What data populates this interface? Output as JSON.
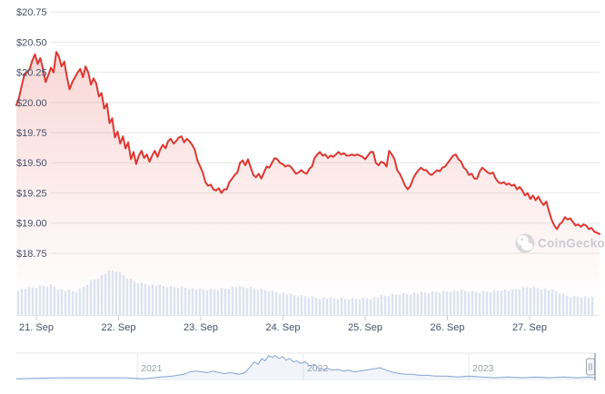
{
  "watermark": {
    "text": "CoinGecko",
    "logo": "gecko-icon"
  },
  "colors": {
    "line": "#dc3832",
    "area_top": "rgba(220,56,48,0.20)",
    "area_bottom": "rgba(220,56,48,0)",
    "grid": "#e7e7e7",
    "axis_label": "#46506a",
    "volume_bar": "#dce2f0",
    "tick": "#c7cedd",
    "nav_line": "#88a3d4",
    "nav_fill": "rgba(136,163,212,0.12)",
    "nav_border": "#e7e7e7",
    "nav_handle_fill": "#f5f6f8",
    "nav_handle_border": "#9aa3b0",
    "nav_label": "#9aa0a6",
    "watermark_text": "#c9cad1",
    "watermark_logo": "#d8d8d8"
  },
  "chart_data": {
    "type": "line",
    "currency": "USD",
    "y_axis": {
      "tick_labels": [
        "$20.75",
        "$20.50",
        "$20.25",
        "$20.00",
        "$19.75",
        "$19.50",
        "$19.25",
        "$19.00",
        "$18.75"
      ],
      "tick_values": [
        20.75,
        20.5,
        20.25,
        20.0,
        19.75,
        19.5,
        19.25,
        19.0,
        18.75
      ]
    },
    "x_axis": {
      "tick_labels": [
        "21. Sep",
        "22. Sep",
        "23. Sep",
        "24. Sep",
        "25. Sep",
        "26. Sep",
        "27. Sep"
      ]
    },
    "ylim": [
      18.6,
      20.85
    ],
    "series": [
      {
        "name": "price_usd",
        "color": "#dc3832",
        "values": [
          19.98,
          20.04,
          20.14,
          20.23,
          20.25,
          20.28,
          20.35,
          20.4,
          20.32,
          20.37,
          20.28,
          20.17,
          20.23,
          20.29,
          20.25,
          20.42,
          20.38,
          20.3,
          20.34,
          20.21,
          20.11,
          20.17,
          20.21,
          20.25,
          20.28,
          20.21,
          20.3,
          20.25,
          20.15,
          20.2,
          20.16,
          20.05,
          20.08,
          19.95,
          19.99,
          19.83,
          19.87,
          19.71,
          19.76,
          19.66,
          19.72,
          19.62,
          19.67,
          19.53,
          19.59,
          19.49,
          19.56,
          19.6,
          19.54,
          19.57,
          19.51,
          19.56,
          19.6,
          19.55,
          19.61,
          19.65,
          19.62,
          19.68,
          19.7,
          19.66,
          19.68,
          19.71,
          19.72,
          19.67,
          19.7,
          19.68,
          19.65,
          19.61,
          19.52,
          19.47,
          19.42,
          19.34,
          19.31,
          19.32,
          19.28,
          19.27,
          19.29,
          19.25,
          19.28,
          19.28,
          19.34,
          19.37,
          19.4,
          19.42,
          19.5,
          19.52,
          19.48,
          19.53,
          19.46,
          19.4,
          19.38,
          19.41,
          19.37,
          19.42,
          19.47,
          19.46,
          19.5,
          19.54,
          19.53,
          19.5,
          19.49,
          19.47,
          19.48,
          19.47,
          19.44,
          19.41,
          19.42,
          19.44,
          19.42,
          19.41,
          19.45,
          19.47,
          19.54,
          19.57,
          19.59,
          19.56,
          19.57,
          19.54,
          19.56,
          19.55,
          19.57,
          19.59,
          19.57,
          19.58,
          19.56,
          19.56,
          19.57,
          19.56,
          19.57,
          19.56,
          19.55,
          19.53,
          19.56,
          19.59,
          19.59,
          19.5,
          19.48,
          19.51,
          19.5,
          19.47,
          19.6,
          19.57,
          19.53,
          19.44,
          19.41,
          19.36,
          19.31,
          19.28,
          19.31,
          19.37,
          19.41,
          19.44,
          19.46,
          19.44,
          19.44,
          19.41,
          19.4,
          19.42,
          19.44,
          19.43,
          19.46,
          19.47,
          19.5,
          19.53,
          19.56,
          19.57,
          19.53,
          19.51,
          19.46,
          19.44,
          19.4,
          19.41,
          19.37,
          19.37,
          19.43,
          19.46,
          19.44,
          19.42,
          19.41,
          19.42,
          19.37,
          19.34,
          19.33,
          19.34,
          19.32,
          19.33,
          19.31,
          19.32,
          19.28,
          19.3,
          19.27,
          19.23,
          19.25,
          19.2,
          19.23,
          19.19,
          19.22,
          19.18,
          19.15,
          19.18,
          19.1,
          19.03,
          18.98,
          18.95,
          18.99,
          19.01,
          19.05,
          19.03,
          19.04,
          19.01,
          18.98,
          18.99,
          18.97,
          18.99,
          18.98,
          18.95,
          18.96,
          18.93,
          18.92,
          18.91
        ]
      }
    ],
    "volume_profile": [
      [
        0.003,
        28
      ],
      [
        0.035,
        31
      ],
      [
        0.058,
        33
      ],
      [
        0.082,
        27
      ],
      [
        0.105,
        26
      ],
      [
        0.129,
        38
      ],
      [
        0.148,
        44
      ],
      [
        0.16,
        48
      ],
      [
        0.17,
        49
      ],
      [
        0.181,
        45
      ],
      [
        0.193,
        40
      ],
      [
        0.207,
        36
      ],
      [
        0.226,
        34
      ],
      [
        0.248,
        32
      ],
      [
        0.27,
        31
      ],
      [
        0.294,
        30
      ],
      [
        0.314,
        28
      ],
      [
        0.333,
        28
      ],
      [
        0.356,
        29
      ],
      [
        0.377,
        31
      ],
      [
        0.399,
        30
      ],
      [
        0.424,
        28
      ],
      [
        0.449,
        25
      ],
      [
        0.474,
        22
      ],
      [
        0.499,
        20
      ],
      [
        0.524,
        19
      ],
      [
        0.553,
        18
      ],
      [
        0.581,
        18
      ],
      [
        0.606,
        19
      ],
      [
        0.631,
        21
      ],
      [
        0.656,
        23
      ],
      [
        0.681,
        24
      ],
      [
        0.706,
        25
      ],
      [
        0.732,
        26
      ],
      [
        0.757,
        27
      ],
      [
        0.776,
        26
      ],
      [
        0.794,
        25
      ],
      [
        0.813,
        26
      ],
      [
        0.832,
        28
      ],
      [
        0.848,
        27
      ],
      [
        0.863,
        29
      ],
      [
        0.879,
        31
      ],
      [
        0.895,
        30
      ],
      [
        0.911,
        28
      ],
      [
        0.926,
        26
      ],
      [
        0.939,
        22
      ],
      [
        0.954,
        20
      ],
      [
        0.967,
        21
      ],
      [
        0.983,
        19
      ],
      [
        0.998,
        17
      ]
    ],
    "navigator": {
      "year_labels": [
        "2021",
        "2022",
        "2023"
      ],
      "year_fractions": [
        0.209,
        0.496,
        0.782
      ],
      "points": [
        [
          0,
          0.03
        ],
        [
          0.07,
          0.07
        ],
        [
          0.13,
          0.07
        ],
        [
          0.19,
          0.07
        ],
        [
          0.22,
          0.03
        ],
        [
          0.25,
          0.1
        ],
        [
          0.27,
          0.14
        ],
        [
          0.29,
          0.21
        ],
        [
          0.3,
          0.31
        ],
        [
          0.31,
          0.34
        ],
        [
          0.33,
          0.28
        ],
        [
          0.34,
          0.34
        ],
        [
          0.35,
          0.28
        ],
        [
          0.36,
          0.24
        ],
        [
          0.37,
          0.28
        ],
        [
          0.385,
          0.21
        ],
        [
          0.395,
          0.28
        ],
        [
          0.403,
          0.48
        ],
        [
          0.411,
          0.72
        ],
        [
          0.418,
          0.62
        ],
        [
          0.424,
          0.86
        ],
        [
          0.43,
          0.76
        ],
        [
          0.436,
          0.97
        ],
        [
          0.443,
          0.9
        ],
        [
          0.447,
          0.98
        ],
        [
          0.454,
          0.86
        ],
        [
          0.46,
          0.93
        ],
        [
          0.466,
          0.79
        ],
        [
          0.472,
          0.86
        ],
        [
          0.479,
          0.72
        ],
        [
          0.485,
          0.76
        ],
        [
          0.491,
          0.66
        ],
        [
          0.499,
          0.72
        ],
        [
          0.507,
          0.55
        ],
        [
          0.515,
          0.62
        ],
        [
          0.523,
          0.45
        ],
        [
          0.531,
          0.41
        ],
        [
          0.538,
          0.45
        ],
        [
          0.546,
          0.38
        ],
        [
          0.556,
          0.41
        ],
        [
          0.565,
          0.34
        ],
        [
          0.574,
          0.38
        ],
        [
          0.584,
          0.31
        ],
        [
          0.593,
          0.34
        ],
        [
          0.603,
          0.38
        ],
        [
          0.612,
          0.41
        ],
        [
          0.622,
          0.45
        ],
        [
          0.628,
          0.48
        ],
        [
          0.636,
          0.41
        ],
        [
          0.644,
          0.34
        ],
        [
          0.653,
          0.28
        ],
        [
          0.662,
          0.24
        ],
        [
          0.673,
          0.21
        ],
        [
          0.684,
          0.21
        ],
        [
          0.697,
          0.17
        ],
        [
          0.71,
          0.17
        ],
        [
          0.725,
          0.14
        ],
        [
          0.744,
          0.14
        ],
        [
          0.763,
          0.1
        ],
        [
          0.782,
          0.14
        ],
        [
          0.804,
          0.1
        ],
        [
          0.827,
          0.07
        ],
        [
          0.851,
          0.1
        ],
        [
          0.874,
          0.07
        ],
        [
          0.898,
          0.1
        ],
        [
          0.921,
          0.07
        ],
        [
          0.945,
          0.1
        ],
        [
          0.969,
          0.07
        ],
        [
          0.989,
          0.1
        ],
        [
          1,
          0.07
        ]
      ]
    }
  }
}
